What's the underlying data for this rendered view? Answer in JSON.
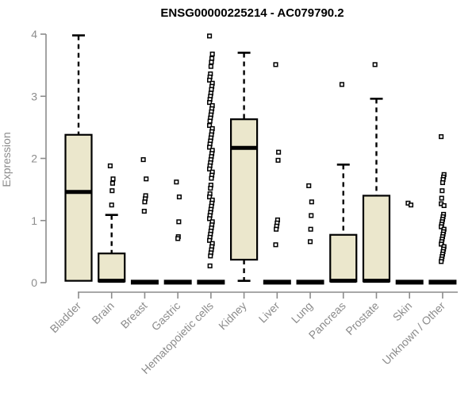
{
  "title": "ENSG00000225214 - AC079790.2",
  "colors": {
    "box_fill": "#EBE7CC",
    "box_border": "#000000",
    "median": "#000000",
    "whisker": "#000000",
    "outlier_stroke": "#000000",
    "outlier_fill": "#FFFFFF",
    "axis": "#8C8C8C",
    "title": "#000000",
    "background": "#FFFFFF"
  },
  "chart_data": {
    "type": "boxplot",
    "title": "ENSG00000225214 - AC079790.2",
    "xlabel": "",
    "ylabel": "Expression",
    "ylim": [
      0,
      4
    ],
    "yticks": [
      0,
      1,
      2,
      3,
      4
    ],
    "grid": false,
    "legend": "none",
    "categories": [
      "Bladder",
      "Brain",
      "Breast",
      "Gastric",
      "Hematopoietic cells",
      "Kidney",
      "Liver",
      "Lung",
      "Pancreas",
      "Prostate",
      "Skin",
      "Unknown / Other"
    ],
    "boxes": [
      {
        "category": "Bladder",
        "low": 0.03,
        "q1": 0.03,
        "median": 1.46,
        "q3": 2.38,
        "high": 3.98,
        "outliers": []
      },
      {
        "category": "Brain",
        "low": 0.02,
        "q1": 0.02,
        "median": 0.03,
        "q3": 0.47,
        "high": 1.09,
        "outliers": [
          1.88,
          1.67,
          1.6,
          1.48,
          1.25
        ]
      },
      {
        "category": "Breast",
        "low": 0.02,
        "q1": 0.02,
        "median": 0.02,
        "q3": 0.02,
        "high": 0.02,
        "outliers": [
          1.98,
          1.67,
          1.4,
          1.35,
          1.3,
          1.15
        ]
      },
      {
        "category": "Gastric",
        "low": 0.02,
        "q1": 0.02,
        "median": 0.02,
        "q3": 0.02,
        "high": 0.02,
        "outliers": [
          1.62,
          1.38,
          0.98,
          0.74,
          0.71
        ]
      },
      {
        "category": "Hematopoietic cells",
        "low": 0.02,
        "q1": 0.02,
        "median": 0.02,
        "q3": 0.02,
        "high": 0.02,
        "outliers": [
          3.97,
          3.68,
          3.61,
          3.55,
          3.48,
          3.36,
          3.31,
          3.26,
          3.21,
          3.16,
          3.11,
          3.05,
          3.0,
          2.95,
          2.9,
          2.85,
          2.8,
          2.75,
          2.7,
          2.65,
          2.6,
          2.53,
          2.48,
          2.43,
          2.38,
          2.33,
          2.28,
          2.23,
          2.18,
          2.13,
          2.08,
          2.03,
          1.98,
          1.93,
          1.88,
          1.83,
          1.78,
          1.73,
          1.68,
          1.57,
          1.52,
          1.43,
          1.38,
          1.33,
          1.28,
          1.23,
          1.18,
          1.13,
          1.08,
          1.03,
          0.98,
          0.93,
          0.88,
          0.83,
          0.78,
          0.73,
          0.68,
          0.63,
          0.58,
          0.53,
          0.48,
          0.43,
          0.27
        ]
      },
      {
        "category": "Kidney",
        "low": 0.03,
        "q1": 0.37,
        "median": 2.17,
        "q3": 2.63,
        "high": 3.7,
        "outliers": []
      },
      {
        "category": "Liver",
        "low": 0.02,
        "q1": 0.02,
        "median": 0.02,
        "q3": 0.02,
        "high": 0.02,
        "outliers": [
          3.51,
          2.1,
          1.97,
          1.01,
          0.96,
          0.91,
          0.86,
          0.61
        ]
      },
      {
        "category": "Lung",
        "low": 0.02,
        "q1": 0.02,
        "median": 0.02,
        "q3": 0.02,
        "high": 0.02,
        "outliers": [
          1.56,
          1.3,
          1.08,
          0.86,
          0.66
        ]
      },
      {
        "category": "Pancreas",
        "low": 0.02,
        "q1": 0.02,
        "median": 0.03,
        "q3": 0.77,
        "high": 1.9,
        "outliers": [
          3.19
        ]
      },
      {
        "category": "Prostate",
        "low": 0.02,
        "q1": 0.02,
        "median": 0.03,
        "q3": 1.4,
        "high": 2.96,
        "outliers": [
          3.51
        ]
      },
      {
        "category": "Skin",
        "low": 0.02,
        "q1": 0.02,
        "median": 0.02,
        "q3": 0.02,
        "high": 0.02,
        "outliers": [
          1.28,
          1.25
        ]
      },
      {
        "category": "Unknown / Other",
        "low": 0.02,
        "q1": 0.02,
        "median": 0.02,
        "q3": 0.02,
        "high": 0.02,
        "outliers": [
          2.35,
          1.74,
          1.7,
          1.66,
          1.61,
          1.48,
          1.36,
          1.27,
          1.24,
          1.1,
          1.06,
          1.02,
          0.98,
          0.94,
          0.9,
          0.86,
          0.82,
          0.78,
          0.74,
          0.7,
          0.66,
          0.62,
          0.58,
          0.54,
          0.5,
          0.46,
          0.42,
          0.38,
          0.34
        ]
      }
    ]
  }
}
